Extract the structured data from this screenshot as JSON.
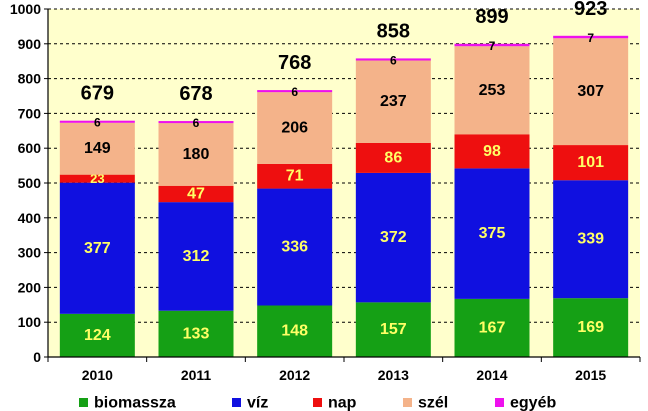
{
  "chart_data": {
    "type": "bar",
    "stacked": true,
    "categories": [
      "2010",
      "2011",
      "2012",
      "2013",
      "2014",
      "2015"
    ],
    "series": [
      {
        "name": "biomassza",
        "color": "#15a015",
        "label_color": "#ffff66",
        "values": [
          124,
          133,
          148,
          157,
          167,
          169
        ]
      },
      {
        "name": "víz",
        "color": "#1010e0",
        "label_color": "#ffff66",
        "values": [
          377,
          312,
          336,
          372,
          375,
          339
        ]
      },
      {
        "name": "nap",
        "color": "#ee0f0f",
        "label_color": "#ffff66",
        "values": [
          23,
          47,
          71,
          86,
          98,
          101
        ]
      },
      {
        "name": "szél",
        "color": "#f4b38a",
        "label_color": "#000000",
        "values": [
          149,
          180,
          206,
          237,
          253,
          307
        ]
      },
      {
        "name": "egyéb",
        "color": "#ee10ee",
        "label_color": "#000000",
        "values": [
          6,
          6,
          6,
          6,
          7,
          7
        ]
      }
    ],
    "totals": [
      679,
      678,
      768,
      858,
      899,
      923
    ],
    "ylim": [
      0,
      1000
    ],
    "yticks": [
      0,
      100,
      200,
      300,
      400,
      500,
      600,
      700,
      800,
      900,
      1000
    ],
    "grid": true,
    "plot_background": "#ffffcc",
    "legend_position": "bottom",
    "title": "",
    "xlabel": "",
    "ylabel": ""
  }
}
